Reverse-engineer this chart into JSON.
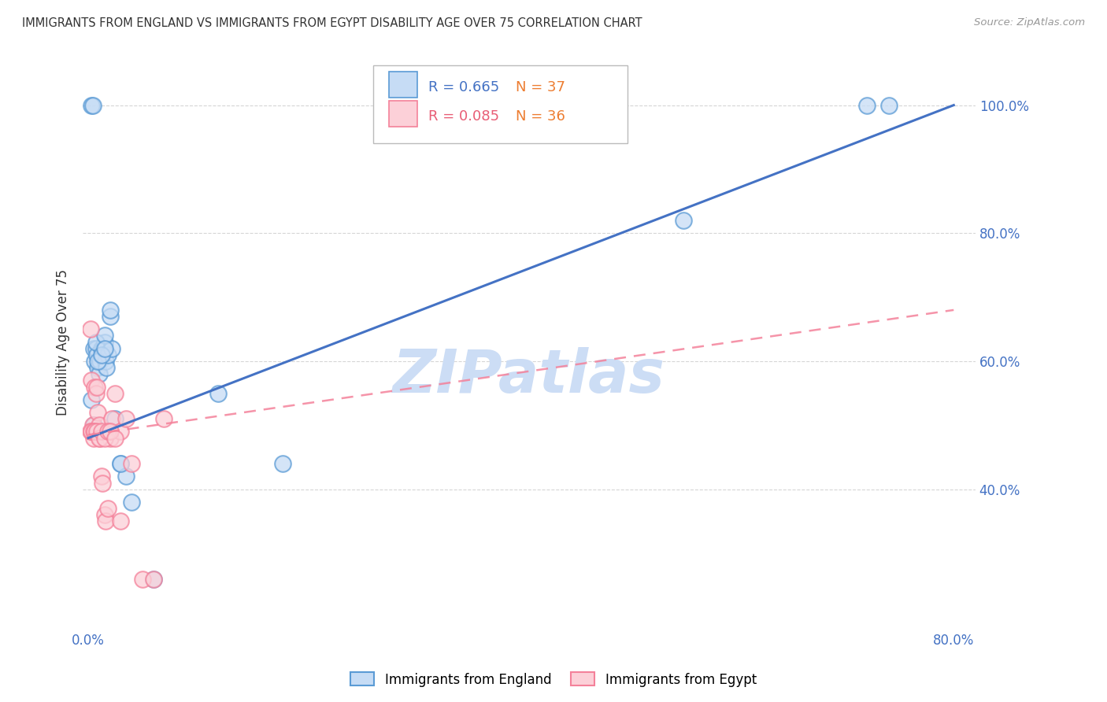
{
  "title": "IMMIGRANTS FROM ENGLAND VS IMMIGRANTS FROM EGYPT DISABILITY AGE OVER 75 CORRELATION CHART",
  "source": "Source: ZipAtlas.com",
  "ylabel": "Disability Age Over 75",
  "england_R": 0.665,
  "england_N": 37,
  "egypt_R": 0.085,
  "egypt_N": 36,
  "england_scatter_color_face": "#c6dcf5",
  "england_scatter_color_edge": "#5b9bd5",
  "egypt_scatter_color_face": "#fcd0d8",
  "egypt_scatter_color_edge": "#f4819a",
  "england_line_color": "#4472c4",
  "egypt_line_color": "#f4819a",
  "R_color": "#4472c4",
  "N_color": "#ed7d31",
  "watermark_color": "#ccddf5",
  "england_x": [
    0.003,
    0.004,
    0.005,
    0.006,
    0.007,
    0.008,
    0.009,
    0.01,
    0.011,
    0.012,
    0.013,
    0.014,
    0.015,
    0.016,
    0.017,
    0.018,
    0.02,
    0.022,
    0.025,
    0.03,
    0.035,
    0.04,
    0.06,
    0.12,
    0.55,
    0.74,
    0.003,
    0.005,
    0.007,
    0.009,
    0.012,
    0.015,
    0.02,
    0.03,
    0.18,
    0.72,
    0.015
  ],
  "england_y": [
    1.0,
    1.0,
    0.62,
    0.6,
    0.62,
    0.61,
    0.59,
    0.58,
    0.6,
    0.62,
    0.61,
    0.62,
    0.63,
    0.6,
    0.59,
    0.61,
    0.67,
    0.62,
    0.51,
    0.44,
    0.42,
    0.38,
    0.26,
    0.55,
    0.82,
    1.0,
    0.54,
    0.5,
    0.63,
    0.6,
    0.61,
    0.64,
    0.68,
    0.44,
    0.44,
    1.0,
    0.62
  ],
  "egypt_x": [
    0.002,
    0.003,
    0.004,
    0.005,
    0.006,
    0.007,
    0.008,
    0.009,
    0.01,
    0.011,
    0.012,
    0.013,
    0.015,
    0.016,
    0.018,
    0.02,
    0.022,
    0.025,
    0.03,
    0.035,
    0.04,
    0.05,
    0.06,
    0.07,
    0.002,
    0.003,
    0.005,
    0.006,
    0.008,
    0.01,
    0.012,
    0.015,
    0.018,
    0.02,
    0.025,
    0.03
  ],
  "egypt_y": [
    0.65,
    0.57,
    0.5,
    0.48,
    0.56,
    0.55,
    0.56,
    0.52,
    0.5,
    0.48,
    0.42,
    0.41,
    0.36,
    0.35,
    0.37,
    0.48,
    0.51,
    0.55,
    0.49,
    0.51,
    0.44,
    0.26,
    0.26,
    0.51,
    0.49,
    0.49,
    0.49,
    0.49,
    0.49,
    0.48,
    0.49,
    0.48,
    0.49,
    0.49,
    0.48,
    0.35
  ],
  "eng_line_x0": 0.0,
  "eng_line_y0": 0.48,
  "eng_line_x1": 0.8,
  "eng_line_y1": 1.0,
  "egy_line_x0": 0.0,
  "egy_line_y0": 0.485,
  "egy_line_x1": 0.8,
  "egy_line_y1": 0.68,
  "xlim_min": -0.005,
  "xlim_max": 0.82,
  "ylim_min": 0.18,
  "ylim_max": 1.08,
  "xtick_vals": [
    0.0,
    0.16,
    0.32,
    0.48,
    0.64,
    0.8
  ],
  "xtick_labels": [
    "0.0%",
    "",
    "",
    "",
    "",
    "80.0%"
  ],
  "ytick_vals": [
    0.4,
    0.6,
    0.8,
    1.0
  ],
  "ytick_labels": [
    "40.0%",
    "60.0%",
    "80.0%",
    "100.0%"
  ],
  "tick_color": "#4472c4",
  "scatter_size": 220,
  "scatter_lw": 1.5,
  "scatter_alpha": 0.75
}
